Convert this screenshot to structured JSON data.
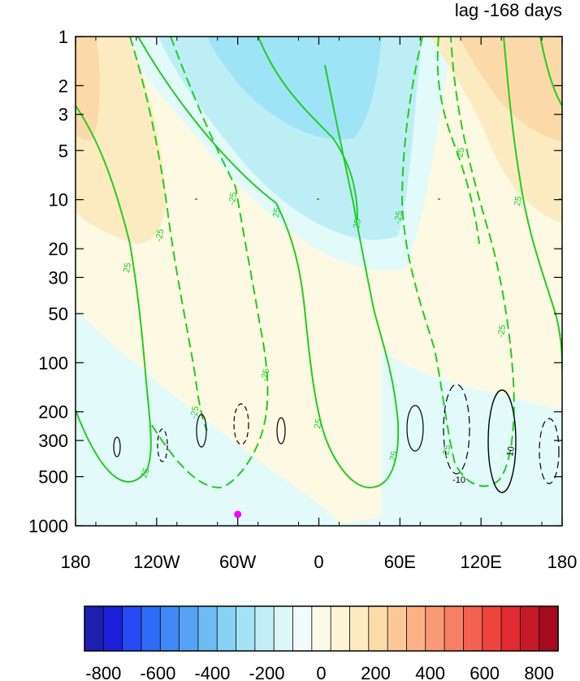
{
  "chart_data": {
    "type": "heatmap",
    "title": "lag -168 days",
    "xlabel": "",
    "ylabel": "",
    "x_ticks": [
      "180",
      "120W",
      "60W",
      "0",
      "60E",
      "120E",
      "180"
    ],
    "y_ticks": [
      "1",
      "2",
      "3",
      "5",
      "10",
      "20",
      "30",
      "50",
      "100",
      "200",
      "300",
      "500",
      "1000"
    ],
    "y_scale": "log",
    "colorbar": {
      "tick_labels": [
        "-800",
        "-600",
        "-400",
        "-200",
        "0",
        "200",
        "400",
        "600",
        "800"
      ],
      "range": [
        -800,
        800
      ],
      "colors": [
        "#1f1fb0",
        "#1e20d9",
        "#2549f4",
        "#2e6cf7",
        "#4289f6",
        "#56a3f5",
        "#6dbcf4",
        "#88d2f5",
        "#a3e3f6",
        "#c1eef7",
        "#dcf7f8",
        "#f1fcfb",
        "#fbfaea",
        "#fcf4d4",
        "#fdeabf",
        "#fddcaa",
        "#fdc897",
        "#fcb286",
        "#fa9a76",
        "#f77f64",
        "#f46150",
        "#ef443e",
        "#e12b31",
        "#c71a28",
        "#a60a1f"
      ]
    },
    "marker": {
      "longitude": "60W",
      "pressure": 850,
      "color": "#ff00ff"
    },
    "contours": {
      "green_label": "25",
      "green_negative_label": "-25",
      "black_labels": [
        "10",
        "-10"
      ]
    }
  }
}
